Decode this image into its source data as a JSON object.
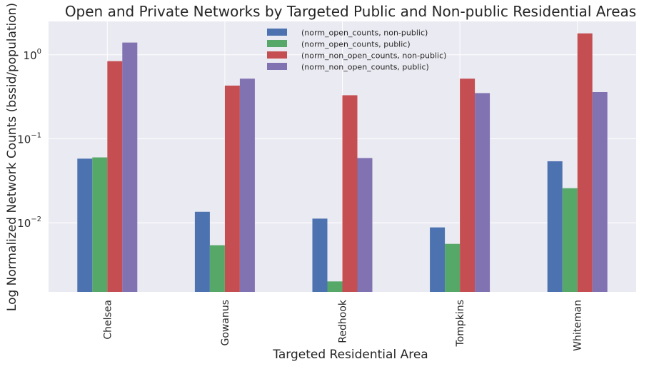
{
  "chart_data": {
    "type": "bar",
    "title": "Open and Private Networks by Targeted Public and Non-public Residential Areas",
    "xlabel": "Targeted Residential Area",
    "ylabel": "Log Normalized Network Counts (bssid/population)",
    "yscale": "log",
    "ylim": [
      0.0015,
      2.5
    ],
    "yticks": [
      {
        "value": 0.01,
        "base": "10",
        "exp": "−2"
      },
      {
        "value": 0.1,
        "base": "10",
        "exp": "−1"
      },
      {
        "value": 1,
        "base": "10",
        "exp": "0"
      }
    ],
    "grid": true,
    "legend_position": "top-center",
    "categories": [
      "Chelsea",
      "Gowanus",
      "Redhook",
      "Tompkins",
      "Whiteman"
    ],
    "series": [
      {
        "name": "(norm_open_counts, non-public)",
        "color": "#4c72b0",
        "values": [
          0.058,
          0.0135,
          0.0112,
          0.0088,
          0.054
        ]
      },
      {
        "name": "(norm_open_counts, public)",
        "color": "#55a868",
        "values": [
          0.06,
          0.0054,
          0.002,
          0.0056,
          0.0258
        ]
      },
      {
        "name": "(norm_non_open_counts, non-public)",
        "color": "#c44e52",
        "values": [
          0.84,
          0.43,
          0.33,
          0.52,
          1.8
        ]
      },
      {
        "name": "(norm_non_open_counts, public)",
        "color": "#8172b2",
        "values": [
          1.4,
          0.52,
          0.059,
          0.35,
          0.36
        ]
      }
    ],
    "colors": {
      "plot_background": "#eaeaf2",
      "grid": "#ffffff",
      "text": "#262626"
    }
  }
}
